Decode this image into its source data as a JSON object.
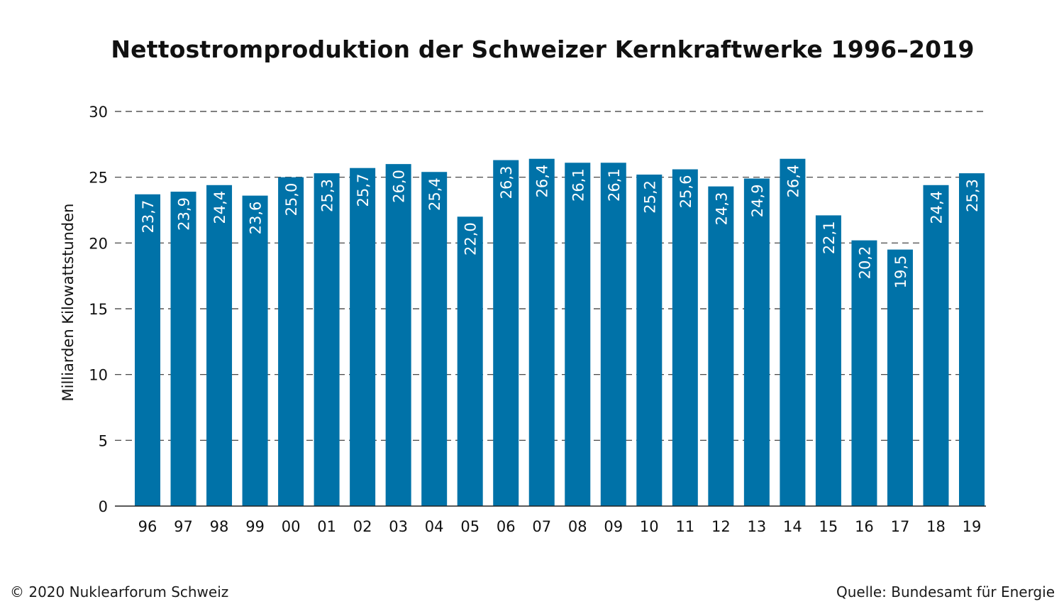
{
  "chart_data": {
    "type": "bar",
    "title": "Nettostromproduktion der Schweizer Kernkraftwerke 1996–2019",
    "ylabel": "Milliarden Kilowattstunden",
    "xlabel": "",
    "ylim": [
      0,
      30
    ],
    "yticks": [
      0,
      5,
      10,
      15,
      20,
      25,
      30
    ],
    "grid": true,
    "categories": [
      "96",
      "97",
      "98",
      "99",
      "00",
      "01",
      "02",
      "03",
      "04",
      "05",
      "06",
      "07",
      "08",
      "09",
      "10",
      "11",
      "12",
      "13",
      "14",
      "15",
      "16",
      "17",
      "18",
      "19"
    ],
    "values": [
      23.7,
      23.9,
      24.4,
      23.6,
      25.0,
      25.3,
      25.7,
      26.0,
      25.4,
      22.0,
      26.3,
      26.4,
      26.1,
      26.1,
      25.2,
      25.6,
      24.3,
      24.9,
      26.4,
      22.1,
      20.2,
      19.5,
      24.4,
      25.3
    ],
    "value_labels": [
      "23,7",
      "23,9",
      "24,4",
      "23,6",
      "25,0",
      "25,3",
      "25,7",
      "26,0",
      "25,4",
      "22,0",
      "26,3",
      "26,4",
      "26,1",
      "26,1",
      "25,2",
      "25,6",
      "24,3",
      "24,9",
      "26,4",
      "22,1",
      "20,2",
      "19,5",
      "24,4",
      "25,3"
    ],
    "bar_color": "#0072a8"
  },
  "footer": {
    "copyright": "© 2020 Nuklearforum Schweiz",
    "source": "Quelle: Bundesamt für Energie"
  }
}
